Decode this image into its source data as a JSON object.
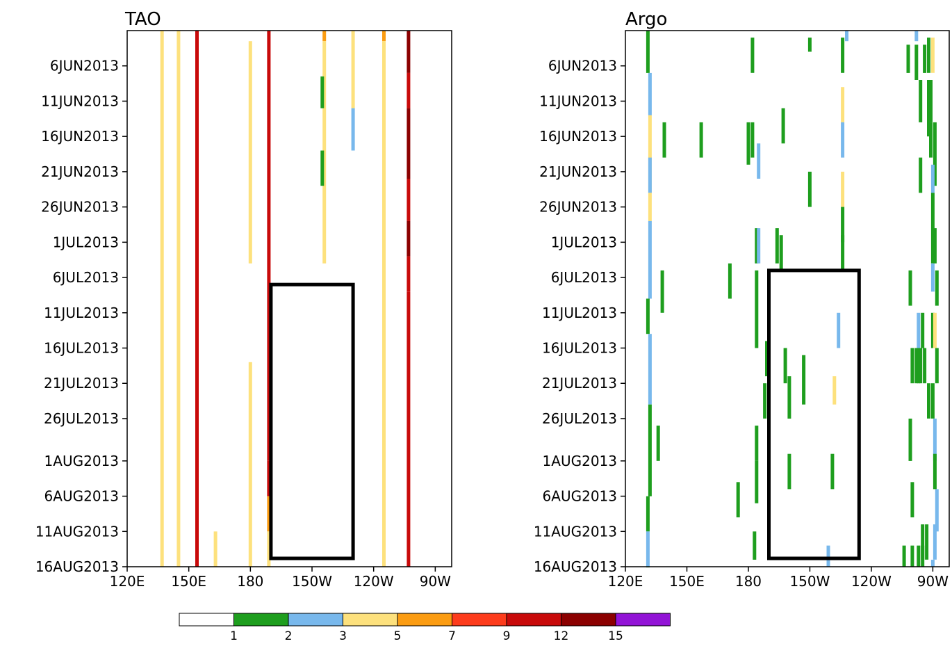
{
  "chart_data": [
    {
      "type": "heatmap",
      "title": "TAO",
      "x_ticks": [
        "120E",
        "150E",
        "180",
        "150W",
        "120W",
        "90W"
      ],
      "x_tick_lon": [
        120,
        150,
        180,
        210,
        240,
        270
      ],
      "xlim": [
        120,
        278
      ],
      "y_ticks": [
        "6JUN2013",
        "11JUN2013",
        "16JUN2013",
        "21JUN2013",
        "26JUN2013",
        "1JUL2013",
        "6JUL2013",
        "11JUL2013",
        "16JUL2013",
        "21JUL2013",
        "26JUL2013",
        "1AUG2013",
        "6AUG2013",
        "11AUG2013",
        "16AUG2013"
      ],
      "y_tick_day": [
        5,
        10,
        15,
        20,
        25,
        30,
        35,
        40,
        45,
        50,
        55,
        61,
        66,
        71,
        76
      ],
      "ylim": [
        0,
        76
      ],
      "box": {
        "lon": [
          190,
          230
        ],
        "day": [
          36,
          76
        ]
      },
      "segments": [
        {
          "lon": 137,
          "day": [
            0,
            76
          ],
          "count": 4
        },
        {
          "lon": 145,
          "day": [
            0,
            76
          ],
          "count": 4
        },
        {
          "lon": 154,
          "day": [
            0,
            76
          ],
          "count": 9
        },
        {
          "lon": 163,
          "day": [
            71,
            76
          ],
          "count": 4
        },
        {
          "lon": 180,
          "day": [
            1.5,
            33
          ],
          "count": 4
        },
        {
          "lon": 180,
          "day": [
            47,
            76
          ],
          "count": 4
        },
        {
          "lon": 189,
          "day": [
            0,
            61
          ],
          "count": 10
        },
        {
          "lon": 189,
          "day": [
            61,
            66
          ],
          "count": 9
        },
        {
          "lon": 189,
          "day": [
            66,
            71
          ],
          "count": 6
        },
        {
          "lon": 189,
          "day": [
            71,
            76
          ],
          "count": 4
        },
        {
          "lon": 216,
          "day": [
            0,
            1.5
          ],
          "count": 6
        },
        {
          "lon": 216,
          "day": [
            1.5,
            33
          ],
          "count": 4
        },
        {
          "lon": 215,
          "day": [
            6.5,
            11
          ],
          "count": 1
        },
        {
          "lon": 215,
          "day": [
            17,
            22
          ],
          "count": 1
        },
        {
          "lon": 230,
          "day": [
            0,
            11
          ],
          "count": 4
        },
        {
          "lon": 230,
          "day": [
            11,
            17
          ],
          "count": 2
        },
        {
          "lon": 245,
          "day": [
            0,
            1.5
          ],
          "count": 6
        },
        {
          "lon": 245,
          "day": [
            1.5,
            76
          ],
          "count": 4
        },
        {
          "lon": 257,
          "day": [
            0,
            6
          ],
          "count": 14
        },
        {
          "lon": 257,
          "day": [
            6,
            11
          ],
          "count": 10
        },
        {
          "lon": 257,
          "day": [
            11,
            21
          ],
          "count": 14
        },
        {
          "lon": 257,
          "day": [
            21,
            27
          ],
          "count": 10
        },
        {
          "lon": 257,
          "day": [
            27,
            32
          ],
          "count": 14
        },
        {
          "lon": 257,
          "day": [
            32,
            37
          ],
          "count": 11
        },
        {
          "lon": 257,
          "day": [
            37,
            76
          ],
          "count": 10
        }
      ]
    },
    {
      "type": "heatmap",
      "title": "Argo",
      "x_ticks": [
        "120E",
        "150E",
        "180",
        "150W",
        "120W",
        "90W"
      ],
      "x_tick_lon": [
        120,
        150,
        180,
        210,
        240,
        270
      ],
      "xlim": [
        120,
        278
      ],
      "y_ticks": [
        "6JUN2013",
        "11JUN2013",
        "16JUN2013",
        "21JUN2013",
        "26JUN2013",
        "1JUL2013",
        "6JUL2013",
        "11JUL2013",
        "16JUL2013",
        "21JUL2013",
        "26JUL2013",
        "1AUG2013",
        "6AUG2013",
        "11AUG2013",
        "16AUG2013"
      ],
      "y_tick_day": [
        5,
        10,
        15,
        20,
        25,
        30,
        35,
        40,
        45,
        50,
        55,
        61,
        66,
        71,
        76
      ],
      "ylim": [
        0,
        76
      ],
      "box": {
        "lon": [
          190,
          234
        ],
        "day": [
          34,
          76
        ]
      },
      "segments": [
        {
          "lon": 131,
          "day": [
            0,
            6
          ],
          "count": 1
        },
        {
          "lon": 132,
          "day": [
            6,
            12
          ],
          "count": 2
        },
        {
          "lon": 132,
          "day": [
            12,
            23
          ],
          "count": 4
        },
        {
          "lon": 132,
          "day": [
            18,
            23
          ],
          "count": 2
        },
        {
          "lon": 132,
          "day": [
            23,
            27
          ],
          "count": 4
        },
        {
          "lon": 132,
          "day": [
            27,
            38
          ],
          "count": 2
        },
        {
          "lon": 131,
          "day": [
            38,
            43
          ],
          "count": 1
        },
        {
          "lon": 132,
          "day": [
            43,
            53
          ],
          "count": 2
        },
        {
          "lon": 132,
          "day": [
            53,
            66
          ],
          "count": 1
        },
        {
          "lon": 131,
          "day": [
            66,
            71
          ],
          "count": 1
        },
        {
          "lon": 131,
          "day": [
            71,
            76
          ],
          "count": 2
        },
        {
          "lon": 131,
          "day": [
            76,
            79
          ],
          "count": 1
        },
        {
          "lon": 139,
          "day": [
            13,
            18
          ],
          "count": 1
        },
        {
          "lon": 138,
          "day": [
            34,
            40
          ],
          "count": 1
        },
        {
          "lon": 136,
          "day": [
            56,
            61
          ],
          "count": 1
        },
        {
          "lon": 157,
          "day": [
            13,
            18
          ],
          "count": 1
        },
        {
          "lon": 171,
          "day": [
            33,
            38
          ],
          "count": 1
        },
        {
          "lon": 175,
          "day": [
            64,
            69
          ],
          "count": 1
        },
        {
          "lon": 180,
          "day": [
            13,
            19
          ],
          "count": 1
        },
        {
          "lon": 182,
          "day": [
            1,
            6
          ],
          "count": 1
        },
        {
          "lon": 182,
          "day": [
            13,
            18
          ],
          "count": 1
        },
        {
          "lon": 184,
          "day": [
            28,
            33
          ],
          "count": 1
        },
        {
          "lon": 184,
          "day": [
            34,
            45
          ],
          "count": 1
        },
        {
          "lon": 184,
          "day": [
            56,
            61
          ],
          "count": 1
        },
        {
          "lon": 184,
          "day": [
            61,
            67
          ],
          "count": 1
        },
        {
          "lon": 183,
          "day": [
            71,
            75
          ],
          "count": 1
        },
        {
          "lon": 185,
          "day": [
            16,
            21
          ],
          "count": 2
        },
        {
          "lon": 185,
          "day": [
            28,
            33
          ],
          "count": 2
        },
        {
          "lon": 189,
          "day": [
            44,
            49
          ],
          "count": 1
        },
        {
          "lon": 188,
          "day": [
            50,
            55
          ],
          "count": 1
        },
        {
          "lon": 190,
          "day": [
            34,
            40
          ],
          "count": 1
        },
        {
          "lon": 194,
          "day": [
            28,
            33
          ],
          "count": 1
        },
        {
          "lon": 196,
          "day": [
            29,
            34
          ],
          "count": 1
        },
        {
          "lon": 197,
          "day": [
            11,
            16
          ],
          "count": 1
        },
        {
          "lon": 198,
          "day": [
            45,
            50
          ],
          "count": 1
        },
        {
          "lon": 200,
          "day": [
            49,
            55
          ],
          "count": 1
        },
        {
          "lon": 200,
          "day": [
            60,
            65
          ],
          "count": 1
        },
        {
          "lon": 207,
          "day": [
            46,
            53
          ],
          "count": 1
        },
        {
          "lon": 210,
          "day": [
            20,
            25
          ],
          "count": 1
        },
        {
          "lon": 210,
          "day": [
            1,
            3
          ],
          "count": 1
        },
        {
          "lon": 226,
          "day": [
            1,
            6
          ],
          "count": 1
        },
        {
          "lon": 226,
          "day": [
            8,
            13
          ],
          "count": 4
        },
        {
          "lon": 226,
          "day": [
            13,
            18
          ],
          "count": 2
        },
        {
          "lon": 226,
          "day": [
            20,
            25
          ],
          "count": 4
        },
        {
          "lon": 226,
          "day": [
            25,
            30
          ],
          "count": 1
        },
        {
          "lon": 226,
          "day": [
            29,
            34
          ],
          "count": 1
        },
        {
          "lon": 224,
          "day": [
            40,
            45
          ],
          "count": 2
        },
        {
          "lon": 222,
          "day": [
            49,
            53
          ],
          "count": 4
        },
        {
          "lon": 221,
          "day": [
            60,
            65
          ],
          "count": 1
        },
        {
          "lon": 219,
          "day": [
            73,
            77
          ],
          "count": 2
        },
        {
          "lon": 228,
          "day": [
            0,
            1.5
          ],
          "count": 2
        },
        {
          "lon": 262,
          "day": [
            0,
            1.5
          ],
          "count": 2
        },
        {
          "lon": 258,
          "day": [
            2,
            6
          ],
          "count": 1
        },
        {
          "lon": 262,
          "day": [
            2,
            7
          ],
          "count": 1
        },
        {
          "lon": 268,
          "day": [
            1,
            6
          ],
          "count": 1
        },
        {
          "lon": 266,
          "day": [
            2,
            6
          ],
          "count": 1
        },
        {
          "lon": 270,
          "day": [
            1,
            6
          ],
          "count": 4
        },
        {
          "lon": 264,
          "day": [
            7,
            13
          ],
          "count": 1
        },
        {
          "lon": 269,
          "day": [
            7,
            13
          ],
          "count": 1
        },
        {
          "lon": 268,
          "day": [
            7,
            15
          ],
          "count": 1
        },
        {
          "lon": 269,
          "day": [
            13,
            18
          ],
          "count": 1
        },
        {
          "lon": 271,
          "day": [
            13,
            22
          ],
          "count": 1
        },
        {
          "lon": 264,
          "day": [
            18,
            23
          ],
          "count": 1
        },
        {
          "lon": 270,
          "day": [
            19,
            23
          ],
          "count": 2
        },
        {
          "lon": 270,
          "day": [
            23,
            33
          ],
          "count": 1
        },
        {
          "lon": 271,
          "day": [
            28,
            33
          ],
          "count": 1
        },
        {
          "lon": 270,
          "day": [
            33,
            37
          ],
          "count": 2
        },
        {
          "lon": 272,
          "day": [
            34,
            39
          ],
          "count": 1
        },
        {
          "lon": 259,
          "day": [
            34,
            39
          ],
          "count": 1
        },
        {
          "lon": 263,
          "day": [
            40,
            45
          ],
          "count": 2
        },
        {
          "lon": 265,
          "day": [
            40,
            45
          ],
          "count": 1
        },
        {
          "lon": 270,
          "day": [
            40,
            45
          ],
          "count": 1
        },
        {
          "lon": 271,
          "day": [
            40,
            45
          ],
          "count": 4
        },
        {
          "lon": 260,
          "day": [
            45,
            50
          ],
          "count": 1
        },
        {
          "lon": 262,
          "day": [
            45,
            50
          ],
          "count": 1
        },
        {
          "lon": 263,
          "day": [
            45,
            50
          ],
          "count": 1
        },
        {
          "lon": 264,
          "day": [
            45,
            50
          ],
          "count": 1
        },
        {
          "lon": 266,
          "day": [
            45,
            50
          ],
          "count": 1
        },
        {
          "lon": 272,
          "day": [
            45,
            50
          ],
          "count": 1
        },
        {
          "lon": 268,
          "day": [
            50,
            55
          ],
          "count": 1
        },
        {
          "lon": 270,
          "day": [
            50,
            55
          ],
          "count": 1
        },
        {
          "lon": 271,
          "day": [
            55,
            61
          ],
          "count": 2
        },
        {
          "lon": 259,
          "day": [
            55,
            61
          ],
          "count": 1
        },
        {
          "lon": 271,
          "day": [
            60,
            65
          ],
          "count": 1
        },
        {
          "lon": 272,
          "day": [
            65,
            71
          ],
          "count": 2
        },
        {
          "lon": 260,
          "day": [
            64,
            69
          ],
          "count": 1
        },
        {
          "lon": 265,
          "day": [
            70,
            75
          ],
          "count": 1
        },
        {
          "lon": 267,
          "day": [
            70,
            75
          ],
          "count": 1
        },
        {
          "lon": 271,
          "day": [
            70,
            75
          ],
          "count": 2
        },
        {
          "lon": 256,
          "day": [
            73,
            78
          ],
          "count": 1
        },
        {
          "lon": 260,
          "day": [
            73,
            78
          ],
          "count": 1
        },
        {
          "lon": 263,
          "day": [
            73,
            78
          ],
          "count": 1
        },
        {
          "lon": 265,
          "day": [
            73,
            78
          ],
          "count": 1
        },
        {
          "lon": 270,
          "day": [
            75,
            79
          ],
          "count": 2
        }
      ]
    }
  ],
  "colorbar": {
    "colors": [
      "#ffffff",
      "#1e9e1e",
      "#78b8ec",
      "#fde17d",
      "#fb9c12",
      "#fd3c1c",
      "#c80a0a",
      "#8b0000",
      "#9213d6"
    ],
    "labels": [
      "1",
      "2",
      "3",
      "5",
      "7",
      "9",
      "12",
      "15"
    ],
    "thresholds": [
      1,
      2,
      3,
      5,
      7,
      9,
      12,
      15
    ]
  }
}
